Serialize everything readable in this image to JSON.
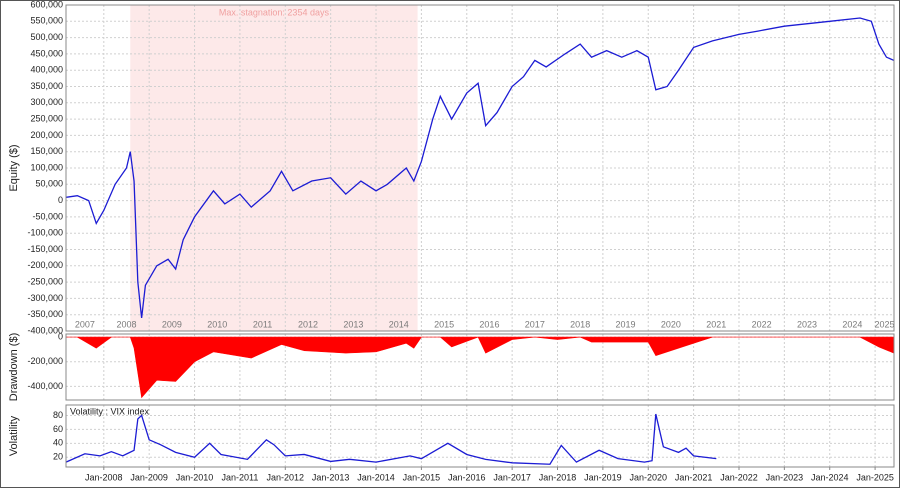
{
  "chart_data": [
    {
      "type": "line",
      "y_label": "Equity ($)",
      "grid": true,
      "xlim": [
        "2007-03",
        "2025-06"
      ],
      "ylim": [
        -400000,
        600000
      ],
      "yticks": [
        {
          "value": -400000,
          "label": "-400,000"
        },
        {
          "value": -350000,
          "label": "-350,000"
        },
        {
          "value": -300000,
          "label": "-300,000"
        },
        {
          "value": -250000,
          "label": "-250,000"
        },
        {
          "value": -200000,
          "label": "-200,000"
        },
        {
          "value": -150000,
          "label": "-150,000"
        },
        {
          "value": -100000,
          "label": "-100,000"
        },
        {
          "value": -50000,
          "label": "-50,000"
        },
        0,
        {
          "value": 50000,
          "label": "50,000"
        },
        {
          "value": 100000,
          "label": "100,000"
        },
        {
          "value": 150000,
          "label": "150,000"
        },
        {
          "value": 200000,
          "label": "200,000"
        },
        {
          "value": 250000,
          "label": "250,000"
        },
        {
          "value": 300000,
          "label": "300,000"
        },
        {
          "value": 350000,
          "label": "350,000"
        },
        {
          "value": 400000,
          "label": "400,000"
        },
        {
          "value": 450000,
          "label": "450,000"
        },
        {
          "value": 500000,
          "label": "500,000"
        },
        {
          "value": 550000,
          "label": "550,000"
        },
        {
          "value": 600000,
          "label": "600,000"
        }
      ],
      "xticks": [
        {
          "value": "2007-01",
          "label": "2007"
        },
        {
          "value": "2008-01",
          "label": "2008"
        },
        {
          "value": "2009-01",
          "label": "2009"
        },
        {
          "value": "2010-01",
          "label": "2010"
        },
        {
          "value": "2011-01",
          "label": "2011"
        },
        {
          "value": "2012-01",
          "label": "2012"
        },
        {
          "value": "2013-01",
          "label": "2013"
        },
        {
          "value": "2014-01",
          "label": "2014"
        },
        {
          "value": "2015-01",
          "label": "2015"
        },
        {
          "value": "2016-01",
          "label": "2016"
        },
        {
          "value": "2017-01",
          "label": "2017"
        },
        {
          "value": "2018-01",
          "label": "2018"
        },
        {
          "value": "2019-01",
          "label": "2019"
        },
        {
          "value": "2020-01",
          "label": "2020"
        },
        {
          "value": "2021-01",
          "label": "2021"
        },
        {
          "value": "2022-01",
          "label": "2022"
        },
        {
          "value": "2023-01",
          "label": "2023"
        },
        {
          "value": "2024-01",
          "label": "2024"
        },
        {
          "value": "2025-01",
          "label": "2025"
        }
      ],
      "shade": {
        "x": [
          "2008-08",
          "2014-12"
        ],
        "label": "Max. stagnation: 2354 days",
        "color": "#fde9e9"
      },
      "x": [
        "2007-03",
        "2007-06",
        "2007-09",
        "2007-11",
        "2008-01",
        "2008-04",
        "2008-07",
        "2008-08",
        "2008-09",
        "2008-10",
        "2008-11",
        "2008-12",
        "2009-03",
        "2009-06",
        "2009-08",
        "2009-10",
        "2010-01",
        "2010-06",
        "2010-09",
        "2011-01",
        "2011-04",
        "2011-09",
        "2011-12",
        "2012-03",
        "2012-08",
        "2013-01",
        "2013-05",
        "2013-09",
        "2014-01",
        "2014-04",
        "2014-09",
        "2014-11",
        "2015-01",
        "2015-04",
        "2015-06",
        "2015-09",
        "2016-01",
        "2016-04",
        "2016-06",
        "2016-09",
        "2017-01",
        "2017-04",
        "2017-07",
        "2017-10",
        "2018-03",
        "2018-07",
        "2018-10",
        "2019-02",
        "2019-06",
        "2019-10",
        "2020-01",
        "2020-03",
        "2020-06",
        "2020-09",
        "2021-01",
        "2021-06",
        "2022-01",
        "2022-06",
        "2023-01",
        "2024-01",
        "2024-09",
        "2024-12",
        "2025-02",
        "2025-04",
        "2025-06"
      ],
      "series": [
        {
          "color": "#1c1cd4",
          "values": [
            10000,
            15000,
            0,
            -70000,
            -30000,
            50000,
            100000,
            150000,
            60000,
            -250000,
            -360000,
            -260000,
            -200000,
            -180000,
            -210000,
            -120000,
            -50000,
            30000,
            -10000,
            20000,
            -20000,
            30000,
            90000,
            30000,
            60000,
            70000,
            20000,
            60000,
            30000,
            50000,
            100000,
            60000,
            120000,
            250000,
            320000,
            250000,
            330000,
            360000,
            230000,
            270000,
            350000,
            380000,
            430000,
            410000,
            450000,
            480000,
            440000,
            460000,
            440000,
            460000,
            440000,
            340000,
            350000,
            400000,
            470000,
            490000,
            510000,
            520000,
            535000,
            550000,
            560000,
            550000,
            480000,
            440000,
            430000
          ]
        }
      ]
    },
    {
      "type": "area",
      "y_label": "Drawdown ($)",
      "grid": true,
      "xlim": [
        "2007-03",
        "2025-06"
      ],
      "ylim": [
        -510000,
        25000
      ],
      "yticks": [
        {
          "value": -400000,
          "label": "-400,000"
        },
        {
          "value": -200000,
          "label": "-200,000"
        },
        0
      ],
      "x": [
        "2007-03",
        "2007-06",
        "2007-11",
        "2008-03",
        "2008-08",
        "2008-09",
        "2008-11",
        "2009-03",
        "2009-08",
        "2010-01",
        "2010-06",
        "2011-04",
        "2011-12",
        "2012-06",
        "2013-05",
        "2014-01",
        "2014-09",
        "2014-11",
        "2015-01",
        "2015-06",
        "2015-09",
        "2016-04",
        "2016-06",
        "2017-01",
        "2017-07",
        "2018-01",
        "2018-07",
        "2018-10",
        "2019-06",
        "2020-01",
        "2020-03",
        "2020-09",
        "2021-06",
        "2024-09",
        "2025-02",
        "2025-06"
      ],
      "series": [
        {
          "color": "#ff0000",
          "values": [
            0,
            0,
            -90000,
            0,
            0,
            -90000,
            -490000,
            -350000,
            -360000,
            -200000,
            -120000,
            -170000,
            -60000,
            -110000,
            -130000,
            -120000,
            -50000,
            -90000,
            0,
            0,
            -80000,
            0,
            -130000,
            -20000,
            0,
            -20000,
            0,
            -40000,
            -40000,
            -40000,
            -150000,
            -90000,
            0,
            0,
            -80000,
            -130000
          ]
        }
      ]
    },
    {
      "type": "line",
      "y_label": "Volatility",
      "grid": true,
      "xlim": [
        "2007-03",
        "2025-06"
      ],
      "ylim": [
        6,
        95
      ],
      "yticks": [
        20,
        40,
        60,
        80
      ],
      "xticks": [
        {
          "value": "2008-01",
          "label": "Jan-2008"
        },
        {
          "value": "2009-01",
          "label": "Jan-2009"
        },
        {
          "value": "2010-01",
          "label": "Jan-2010"
        },
        {
          "value": "2011-01",
          "label": "Jan-2011"
        },
        {
          "value": "2012-01",
          "label": "Jan-2012"
        },
        {
          "value": "2013-01",
          "label": "Jan-2013"
        },
        {
          "value": "2014-01",
          "label": "Jan-2014"
        },
        {
          "value": "2015-01",
          "label": "Jan-2015"
        },
        {
          "value": "2016-01",
          "label": "Jan-2016"
        },
        {
          "value": "2017-01",
          "label": "Jan-2017"
        },
        {
          "value": "2018-01",
          "label": "Jan-2018"
        },
        {
          "value": "2019-01",
          "label": "Jan-2019"
        },
        {
          "value": "2020-01",
          "label": "Jan-2020"
        },
        {
          "value": "2021-01",
          "label": "Jan-2021"
        },
        {
          "value": "2022-01",
          "label": "Jan-2022"
        },
        {
          "value": "2023-01",
          "label": "Jan-2023"
        },
        {
          "value": "2024-01",
          "label": "Jan-2024"
        },
        {
          "value": "2025-01",
          "label": "Jan-2025"
        }
      ],
      "x": [
        "2007-03",
        "2007-08",
        "2007-12",
        "2008-03",
        "2008-06",
        "2008-09",
        "2008-10",
        "2008-11",
        "2009-01",
        "2009-04",
        "2009-08",
        "2010-01",
        "2010-05",
        "2010-08",
        "2011-03",
        "2011-08",
        "2011-10",
        "2012-01",
        "2012-06",
        "2013-01",
        "2013-06",
        "2014-01",
        "2014-10",
        "2015-01",
        "2015-08",
        "2016-01",
        "2016-06",
        "2017-01",
        "2017-11",
        "2018-02",
        "2018-06",
        "2018-12",
        "2019-05",
        "2019-12",
        "2020-02",
        "2020-03",
        "2020-05",
        "2020-09",
        "2020-11",
        "2021-01",
        "2021-07"
      ],
      "series": [
        {
          "name": "Volatility : VIX index",
          "color": "#1c1cd4",
          "values": [
            13,
            25,
            22,
            28,
            22,
            30,
            75,
            80,
            45,
            38,
            27,
            20,
            40,
            24,
            17,
            45,
            38,
            22,
            24,
            14,
            17,
            13,
            22,
            18,
            40,
            24,
            17,
            12,
            10,
            37,
            13,
            30,
            18,
            13,
            15,
            82,
            35,
            27,
            33,
            22,
            18
          ]
        }
      ]
    }
  ]
}
